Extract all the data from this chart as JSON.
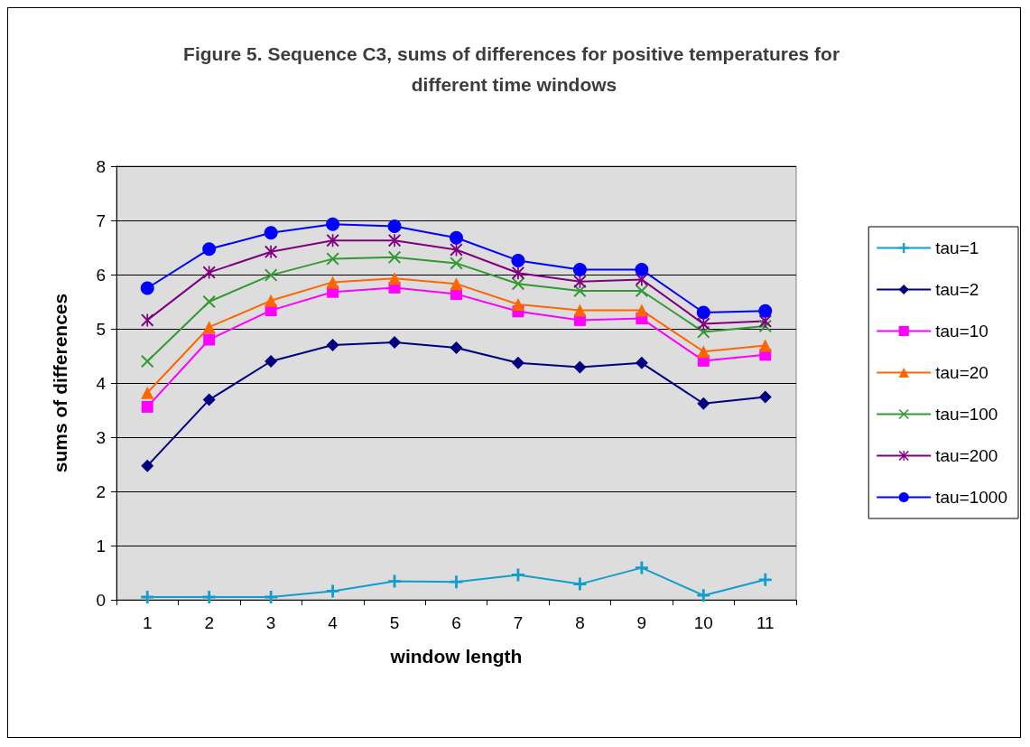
{
  "chart_data": {
    "type": "line",
    "title": "Figure 5. Sequence C3, sums of differences for positive temperatures for different time windows",
    "xlabel": "window length",
    "ylabel": "sums of differences",
    "categories": [
      "1",
      "2",
      "3",
      "4",
      "5",
      "6",
      "7",
      "8",
      "9",
      "10",
      "11"
    ],
    "ylim": [
      0,
      8
    ],
    "yticks": [
      0,
      1,
      2,
      3,
      4,
      5,
      6,
      7,
      8
    ],
    "grid": "y",
    "legend": "right",
    "line_style": "solid",
    "series": [
      {
        "name": "tau=1",
        "color": "#119ecc",
        "marker": "cross",
        "values": [
          0.05,
          0.05,
          0.05,
          0.16,
          0.34,
          0.33,
          0.46,
          0.29,
          0.59,
          0.08,
          0.37
        ]
      },
      {
        "name": "tau=2",
        "color": "#000080",
        "marker": "diamond",
        "values": [
          2.47,
          3.69,
          4.4,
          4.7,
          4.75,
          4.65,
          4.37,
          4.29,
          4.37,
          3.62,
          3.74
        ]
      },
      {
        "name": "tau=10",
        "color": "#ff00ff",
        "marker": "square",
        "values": [
          3.56,
          4.8,
          5.34,
          5.68,
          5.76,
          5.64,
          5.32,
          5.16,
          5.19,
          4.41,
          4.52
        ]
      },
      {
        "name": "tau=20",
        "color": "#ff6600",
        "marker": "triangle",
        "values": [
          3.82,
          5.03,
          5.52,
          5.86,
          5.93,
          5.83,
          5.45,
          5.34,
          5.34,
          4.58,
          4.69
        ]
      },
      {
        "name": "tau=100",
        "color": "#339933",
        "marker": "cross",
        "values": [
          4.4,
          5.5,
          5.99,
          6.29,
          6.32,
          6.21,
          5.83,
          5.7,
          5.7,
          4.94,
          5.05
        ]
      },
      {
        "name": "tau=200",
        "color": "#800080",
        "marker": "star",
        "values": [
          5.16,
          6.04,
          6.42,
          6.63,
          6.63,
          6.46,
          6.03,
          5.87,
          5.91,
          5.09,
          5.14
        ]
      },
      {
        "name": "tau=1000",
        "color": "#0000ff",
        "marker": "circle",
        "values": [
          5.75,
          6.47,
          6.77,
          6.93,
          6.89,
          6.68,
          6.26,
          6.09,
          6.09,
          5.3,
          5.33
        ]
      }
    ]
  }
}
